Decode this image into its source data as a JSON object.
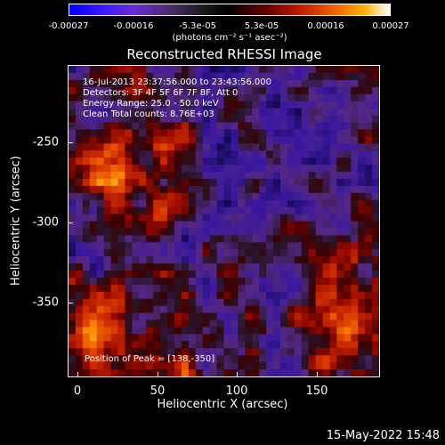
{
  "colorbar": {
    "ticks": [
      "-0.00027",
      "-0.00016",
      "-5.3e-05",
      "5.3e-05",
      "0.00016",
      "0.00027"
    ],
    "units": "(photons cm⁻² s⁻¹ asec⁻²)"
  },
  "title": "Reconstructed RHESSI Image",
  "overlay": {
    "time_range": "16-Jul-2013 23:37:56.000 to 23:43:56.000",
    "detectors": "Detectors: 3F 4F 5F 6F 7F 8F, Att 0",
    "energy_range": "Energy Range: 25.0 - 50.0 keV",
    "clean": "Clean   Total counts: 8.76E+03",
    "peak": "Position of Peak = [138,-350]"
  },
  "axes": {
    "xlabel": "Heliocentric X (arcsec)",
    "ylabel": "Heliocentric Y (arcsec)",
    "xticks": [
      "0",
      "50",
      "100",
      "150"
    ],
    "yticks": [
      "-250",
      "-300",
      "-350"
    ]
  },
  "footer": {
    "timestamp": "15-May-2022 15:48"
  },
  "colors": {
    "background": "#000000",
    "negative": "#3a18ff",
    "neutral": "#4a2a6a",
    "positive": "#f25a00",
    "peak": "#ffffff"
  },
  "chart_data": {
    "type": "heatmap",
    "title": "Reconstructed RHESSI Image",
    "xlabel": "Heliocentric X (arcsec)",
    "ylabel": "Heliocentric Y (arcsec)",
    "xlim": [
      -6,
      190
    ],
    "ylim": [
      -394,
      -198
    ],
    "colorbar_range": [
      -0.00027,
      0.00027
    ],
    "peak_position": [
      138,
      -350
    ]
  }
}
